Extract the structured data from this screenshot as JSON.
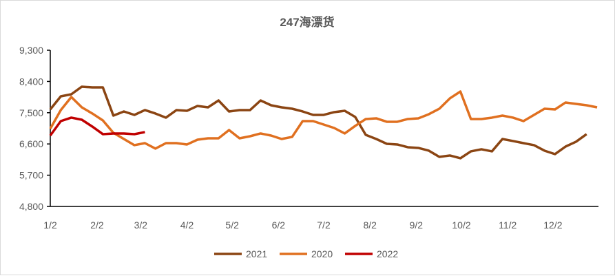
{
  "chart_data": {
    "type": "line",
    "title": "247海漂货",
    "xlabel": "",
    "ylabel": "",
    "ylim": [
      4800,
      9300
    ],
    "yticks": [
      4800,
      5700,
      6600,
      7500,
      8400,
      9300
    ],
    "ytick_labels": [
      "4,800",
      "5,700",
      "6,600",
      "7,500",
      "8,400",
      "9,300"
    ],
    "x_unit": "week",
    "xticks": [
      {
        "label": "1/2",
        "week": 0
      },
      {
        "label": "2/2",
        "week": 4.45
      },
      {
        "label": "3/2",
        "week": 8.6
      },
      {
        "label": "4/2",
        "week": 13.0
      },
      {
        "label": "5/2",
        "week": 17.3
      },
      {
        "label": "6/2",
        "week": 21.7
      },
      {
        "label": "7/2",
        "week": 26.0
      },
      {
        "label": "8/2",
        "week": 30.4
      },
      {
        "label": "9/2",
        "week": 34.8
      },
      {
        "label": "10/2",
        "week": 39.1
      },
      {
        "label": "11/2",
        "week": 43.5
      },
      {
        "label": "12/2",
        "week": 47.8
      }
    ],
    "grid": false,
    "legend": "bottom",
    "series": [
      {
        "name": "2021",
        "color": "#8B4513",
        "values": [
          7595,
          7972,
          8031,
          8250,
          8230,
          8230,
          7417,
          7536,
          7437,
          7576,
          7477,
          7358,
          7576,
          7556,
          7695,
          7655,
          7853,
          7536,
          7576,
          7576,
          7853,
          7714,
          7655,
          7615,
          7536,
          7437,
          7437,
          7516,
          7556,
          7378,
          6862,
          6743,
          6604,
          6585,
          6505,
          6486,
          6406,
          6228,
          6268,
          6188,
          6387,
          6446,
          6387,
          6743,
          6684,
          6624,
          6565,
          6406,
          6307,
          6525,
          6664,
          6882
        ]
      },
      {
        "name": "2020",
        "color": "#E07020",
        "values": [
          7041,
          7576,
          7952,
          7655,
          7477,
          7278,
          6922,
          6743,
          6565,
          6624,
          6466,
          6624,
          6624,
          6585,
          6723,
          6763,
          6763,
          7001,
          6763,
          6822,
          6902,
          6842,
          6743,
          6803,
          7258,
          7258,
          7159,
          7060,
          6902,
          7120,
          7318,
          7338,
          7239,
          7239,
          7318,
          7338,
          7457,
          7615,
          7913,
          8111,
          7318,
          7318,
          7358,
          7417,
          7358,
          7258,
          7437,
          7615,
          7595,
          7794,
          7754,
          7714,
          7655
        ]
      },
      {
        "name": "2022",
        "color": "#C00000",
        "values": [
          6842,
          7258,
          7358,
          7298,
          7100,
          6882,
          6902,
          6902,
          6882,
          6942
        ]
      }
    ]
  }
}
